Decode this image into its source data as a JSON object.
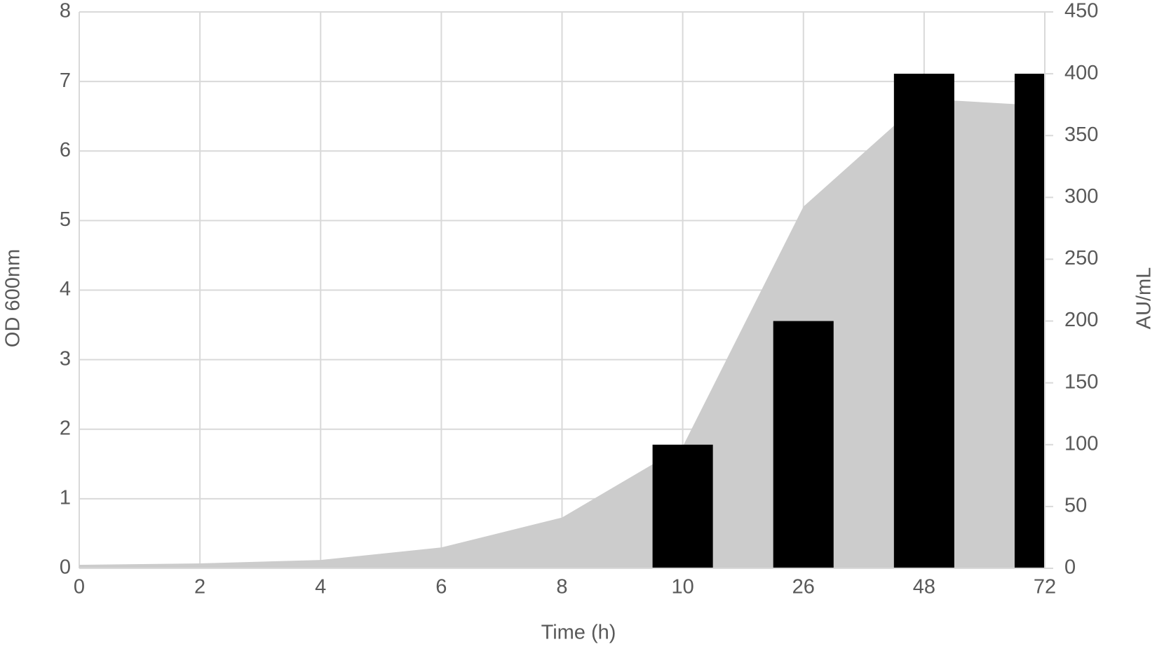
{
  "chart_data": {
    "type": "combo",
    "x_label": "Time (h)",
    "y_label": "OD 600nm",
    "y2_label": "AU/mL",
    "categories": [
      "0",
      "2",
      "4",
      "6",
      "8",
      "10",
      "26",
      "48",
      "72"
    ],
    "series": [
      {
        "type": "area",
        "color": "#cccccc",
        "values": [
          0.05,
          0.07,
          0.12,
          0.3,
          0.73,
          1.75,
          5.2,
          6.75,
          6.65
        ]
      },
      {
        "type": "bar",
        "axis": "y2",
        "color": "#000000",
        "values": [
          0,
          0,
          0,
          0,
          0,
          100,
          200,
          400,
          400
        ]
      }
    ],
    "ylim": [
      0,
      8
    ],
    "yticks": [
      0,
      1,
      2,
      3,
      4,
      5,
      6,
      7,
      8
    ],
    "y2lim": [
      0,
      450
    ],
    "y2ticks": [
      0,
      50,
      100,
      150,
      200,
      250,
      300,
      350,
      400,
      450
    ],
    "grid": true
  }
}
